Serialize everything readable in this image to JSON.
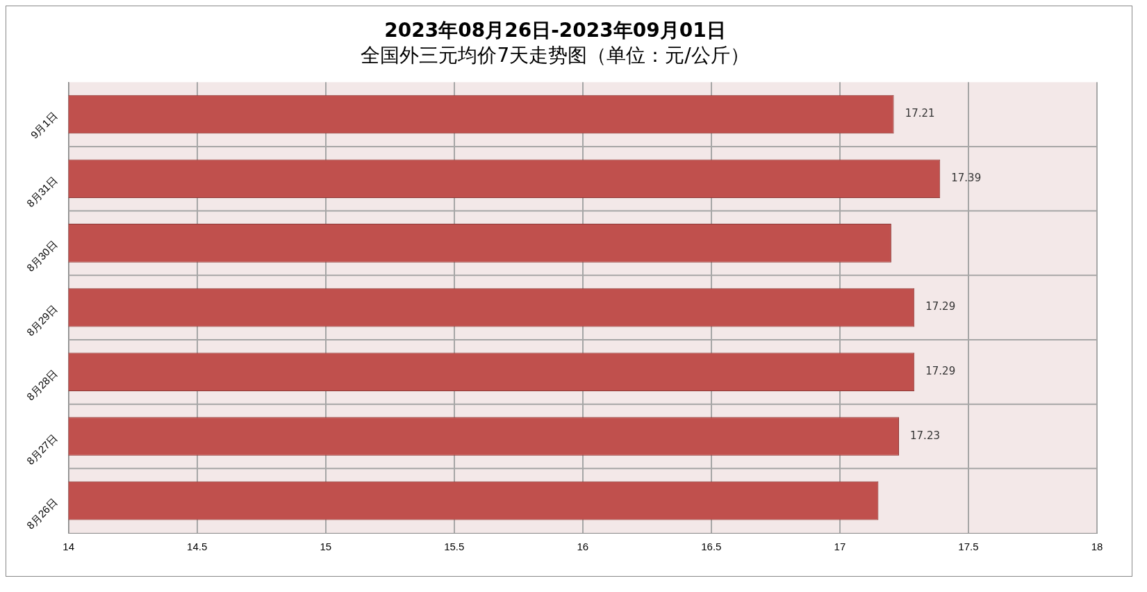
{
  "chart_data": {
    "type": "bar",
    "orientation": "horizontal",
    "title": "2023年08月26日-2023年09月01日",
    "subtitle": "全国外三元均价7天走势图（单位：元/公斤）",
    "categories": [
      "9月1日",
      "8月31日",
      "8月30日",
      "8月29日",
      "8月28日",
      "8月27日",
      "8月26日"
    ],
    "values": [
      17.21,
      17.39,
      17.2,
      17.29,
      17.29,
      17.23,
      17.15
    ],
    "value_labels": [
      "17.21",
      "17.39",
      null,
      "17.29",
      "17.29",
      "17.23",
      null
    ],
    "color": "#c0504d",
    "xlim": [
      14,
      18
    ],
    "xticks": [
      14,
      14.5,
      15,
      15.5,
      16,
      16.5,
      17,
      17.5,
      18
    ],
    "grid": true,
    "legend": false
  }
}
